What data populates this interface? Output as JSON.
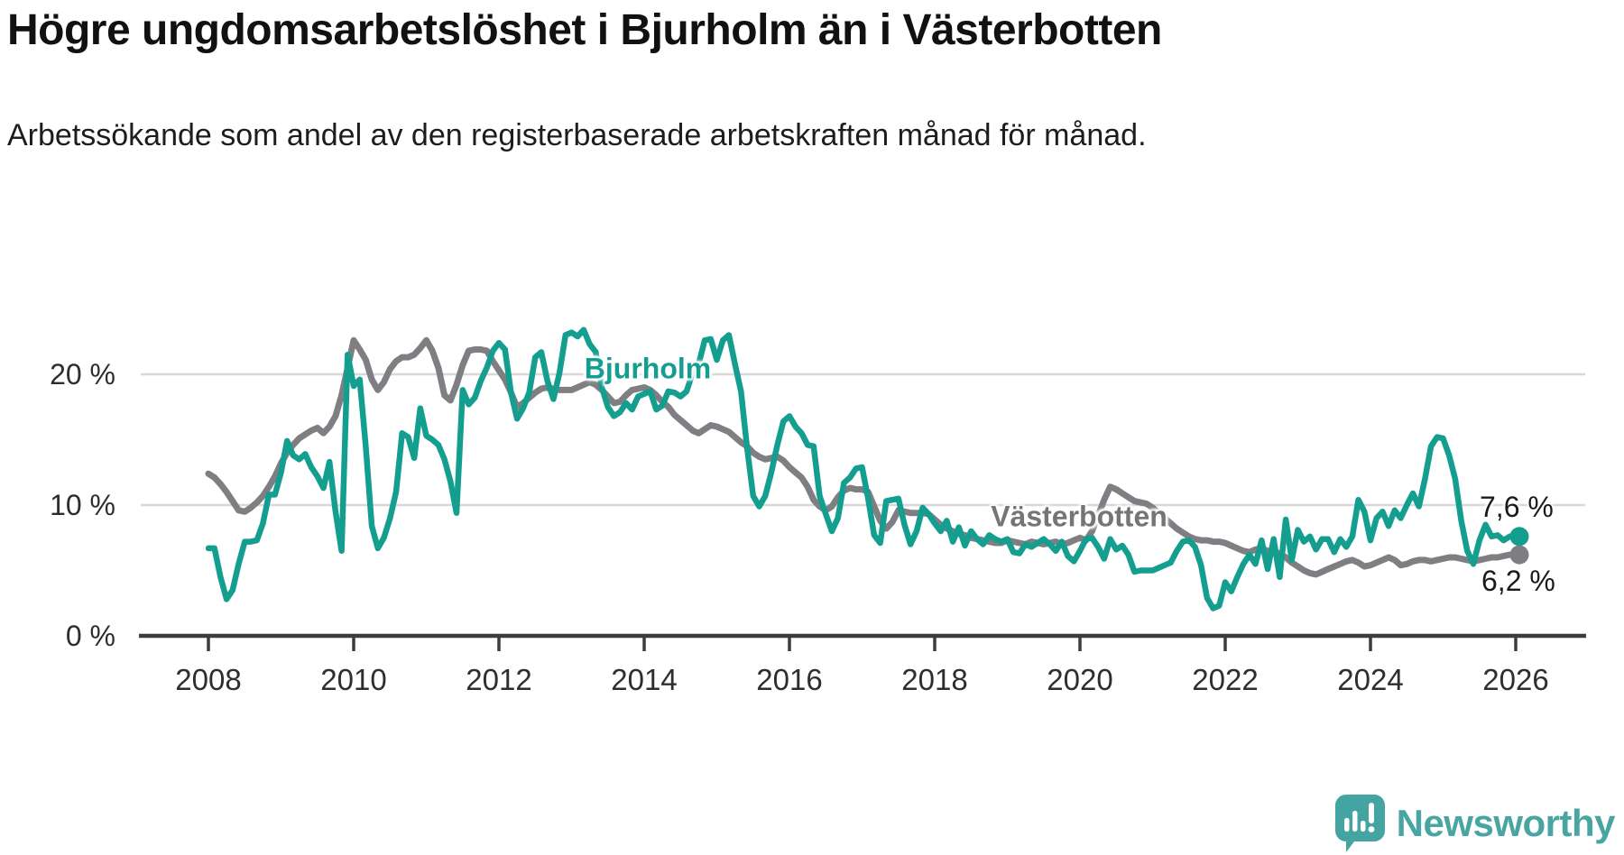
{
  "header": {
    "title": "Högre ungdomsarbetslöshet i Bjurholm än i Västerbotten",
    "subtitle": "Arbetssökande som andel av den registerbaserade arbetskraften månad för månad."
  },
  "chart_data": {
    "type": "line",
    "title": "Högre ungdomsarbetslöshet i Bjurholm än i Västerbotten",
    "subtitle": "Arbetssökande som andel av den registerbaserade arbetskraften månad för månad.",
    "grid": "horizontal",
    "legend_position": "inline-labels",
    "ylim": [
      0,
      24
    ],
    "y_ticks": [
      {
        "label": "0 %",
        "value": 0
      },
      {
        "label": "10 %",
        "value": 10
      },
      {
        "label": "20 %",
        "value": 20
      }
    ],
    "x_tick_labels": [
      "2008",
      "2010",
      "2012",
      "2014",
      "2016",
      "2018",
      "2020",
      "2022",
      "2024",
      "2026"
    ],
    "x_start": "2008-01",
    "x_end": "2026-01",
    "interval": "month",
    "series": [
      {
        "name": "Bjurholm",
        "color": "#149e90",
        "end_label": "7,6 %",
        "end_value": 7.6,
        "values": [
          6.7,
          6.7,
          4.5,
          2.8,
          3.5,
          5.5,
          7.2,
          7.2,
          7.3,
          8.6,
          10.8,
          10.8,
          12.5,
          14.9,
          13.8,
          13.5,
          13.9,
          12.9,
          12.2,
          11.3,
          13.3,
          9.5,
          6.5,
          21.5,
          19.1,
          19.6,
          14.5,
          8.4,
          6.7,
          7.5,
          9.0,
          11.0,
          15.5,
          15.2,
          13.6,
          17.4,
          15.3,
          15.0,
          14.6,
          13.5,
          11.8,
          9.4,
          18.8,
          17.7,
          18.2,
          19.5,
          20.5,
          21.8,
          22.4,
          21.9,
          18.6,
          16.6,
          17.4,
          18.6,
          21.3,
          21.7,
          19.5,
          18.1,
          20.1,
          23.0,
          23.2,
          22.9,
          23.4,
          22.3,
          21.7,
          19.0,
          17.5,
          16.8,
          17.1,
          17.8,
          17.3,
          18.3,
          18.5,
          18.7,
          17.3,
          17.6,
          18.7,
          18.6,
          18.3,
          18.7,
          20.1,
          20.8,
          22.6,
          22.7,
          21.1,
          22.6,
          23.0,
          20.8,
          18.7,
          14.4,
          10.7,
          9.9,
          10.7,
          12.5,
          14.6,
          16.4,
          16.8,
          16.0,
          15.5,
          14.6,
          14.5,
          10.7,
          9.3,
          8.0,
          9.0,
          11.7,
          12.1,
          12.8,
          12.9,
          10.5,
          7.7,
          7.1,
          10.3,
          10.4,
          10.5,
          8.5,
          7.0,
          8.0,
          9.8,
          9.3,
          8.6,
          8.0,
          8.8,
          7.2,
          8.3,
          6.9,
          8.0,
          7.4,
          7.0,
          7.7,
          7.4,
          7.2,
          7.4,
          6.4,
          6.3,
          7.0,
          6.8,
          7.1,
          7.4,
          7.0,
          6.5,
          7.2,
          6.1,
          5.7,
          6.5,
          7.4,
          7.5,
          6.8,
          5.9,
          7.4,
          6.6,
          6.9,
          6.2,
          4.9,
          5.0,
          5.0,
          5.0,
          5.2,
          5.4,
          5.6,
          6.5,
          7.2,
          7.3,
          6.8,
          5.4,
          2.9,
          2.1,
          2.3,
          4.1,
          3.4,
          4.5,
          5.5,
          6.2,
          5.5,
          7.3,
          5.1,
          7.4,
          4.5,
          8.9,
          5.8,
          8.1,
          7.2,
          7.6,
          6.6,
          7.4,
          7.4,
          6.4,
          7.4,
          6.8,
          7.6,
          10.4,
          9.5,
          7.3,
          9.0,
          9.5,
          8.4,
          9.6,
          9.0,
          10.0,
          10.9,
          9.9,
          12.0,
          14.5,
          15.2,
          15.1,
          13.8,
          12.0,
          8.8,
          6.5,
          5.5,
          7.3,
          8.5,
          7.6,
          7.7,
          7.3,
          7.6,
          7.6
        ]
      },
      {
        "name": "Västerbotten",
        "color": "#7f7f83",
        "end_label": "6,2 %",
        "end_value": 6.2,
        "values": [
          12.4,
          12.1,
          11.6,
          11.0,
          10.3,
          9.6,
          9.5,
          9.8,
          10.2,
          10.7,
          11.4,
          12.2,
          13.2,
          14.0,
          14.6,
          15.1,
          15.4,
          15.7,
          15.9,
          15.5,
          16.0,
          16.8,
          18.4,
          20.5,
          22.6,
          21.9,
          21.1,
          19.6,
          18.8,
          19.4,
          20.4,
          21.0,
          21.3,
          21.3,
          21.5,
          22.0,
          22.6,
          21.8,
          20.5,
          18.4,
          18.0,
          19.2,
          20.7,
          21.8,
          21.9,
          21.9,
          21.8,
          21.0,
          20.3,
          19.6,
          18.6,
          17.5,
          17.8,
          18.2,
          18.6,
          18.9,
          19.0,
          18.9,
          18.8,
          18.8,
          18.8,
          19.0,
          19.2,
          19.4,
          19.2,
          18.8,
          18.3,
          17.8,
          17.9,
          18.4,
          18.8,
          18.9,
          19.0,
          18.8,
          18.4,
          17.9,
          17.5,
          16.9,
          16.5,
          16.1,
          15.7,
          15.5,
          15.8,
          16.1,
          16.0,
          15.8,
          15.6,
          15.2,
          14.8,
          14.5,
          14.0,
          13.7,
          13.5,
          13.6,
          13.7,
          13.4,
          12.9,
          12.5,
          12.1,
          11.4,
          10.4,
          9.9,
          9.6,
          9.9,
          10.6,
          11.1,
          11.3,
          11.2,
          11.2,
          11.0,
          9.9,
          8.8,
          8.2,
          8.7,
          9.6,
          9.5,
          9.4,
          9.4,
          9.4,
          9.3,
          8.9,
          8.5,
          8.2,
          8.0,
          7.8,
          7.7,
          7.5,
          7.4,
          7.3,
          7.2,
          7.1,
          7.1,
          7.3,
          7.2,
          7.1,
          7.0,
          7.2,
          7.1,
          7.0,
          7.1,
          7.2,
          7.0,
          7.1,
          7.3,
          7.5,
          7.3,
          8.0,
          9.2,
          10.4,
          11.4,
          11.2,
          10.9,
          10.6,
          10.3,
          10.2,
          10.1,
          9.8,
          9.4,
          9.0,
          8.6,
          8.2,
          7.9,
          7.6,
          7.4,
          7.3,
          7.3,
          7.2,
          7.2,
          7.1,
          6.9,
          6.7,
          6.5,
          6.4,
          6.6,
          6.7,
          6.5,
          6.4,
          6.3,
          6.0,
          5.6,
          5.3,
          5.0,
          4.8,
          4.7,
          4.9,
          5.1,
          5.3,
          5.5,
          5.7,
          5.8,
          5.6,
          5.3,
          5.4,
          5.6,
          5.8,
          6.0,
          5.8,
          5.4,
          5.5,
          5.7,
          5.8,
          5.8,
          5.7,
          5.8,
          5.9,
          6.0,
          6.0,
          5.9,
          5.8,
          5.7,
          5.8,
          5.9,
          6.0,
          6.0,
          6.1,
          6.2,
          6.2
        ]
      }
    ],
    "colors": {
      "gridline": "#d8d8d8",
      "axis": "#3c3c3c",
      "tick_text": "#2e2e2e",
      "value_label_text": "#1a1a1a"
    }
  },
  "footer": {
    "brand": "Newsworthy",
    "brand_color": "#48a5a2",
    "logo_icon": "speech-bubble-bar-chart-icon"
  }
}
